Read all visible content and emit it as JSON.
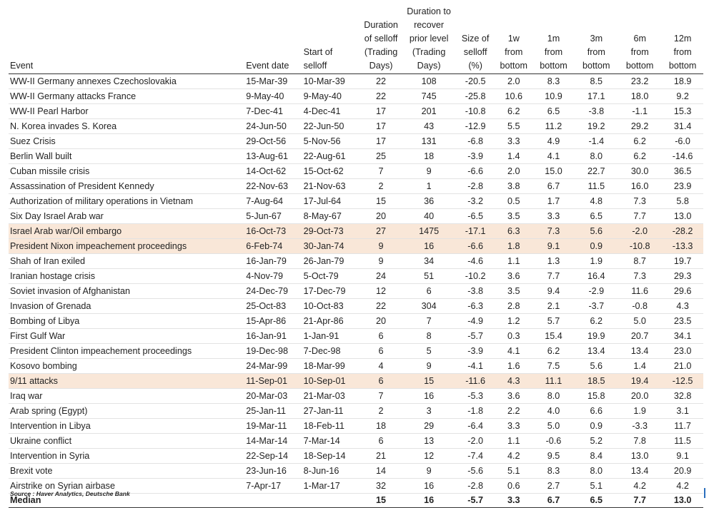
{
  "chart_data": {
    "type": "table",
    "columns": [
      {
        "key": "event",
        "lines": [
          "Event"
        ]
      },
      {
        "key": "event_date",
        "lines": [
          "Event date"
        ]
      },
      {
        "key": "start_selloff",
        "lines": [
          "Start of",
          "selloff"
        ]
      },
      {
        "key": "duration_selloff",
        "lines": [
          "Duration",
          "of selloff",
          "(Trading",
          "Days)"
        ]
      },
      {
        "key": "duration_recover",
        "lines": [
          "Duration to",
          "recover",
          "prior level",
          "(Trading",
          "Days)"
        ]
      },
      {
        "key": "size_selloff",
        "lines": [
          "Size of",
          "selloff",
          "(%)"
        ]
      },
      {
        "key": "w1",
        "lines": [
          "1w",
          "from",
          "bottom"
        ]
      },
      {
        "key": "m1",
        "lines": [
          "1m",
          "from",
          "bottom"
        ]
      },
      {
        "key": "m3",
        "lines": [
          "3m",
          "from",
          "bottom"
        ]
      },
      {
        "key": "m6",
        "lines": [
          "6m",
          "from",
          "bottom"
        ]
      },
      {
        "key": "m12",
        "lines": [
          "12m",
          "from",
          "bottom"
        ]
      }
    ],
    "rows": [
      {
        "cells": [
          "WW-II Germany annexes Czechoslovakia",
          "15-Mar-39",
          "10-Mar-39",
          "22",
          "108",
          "-20.5",
          "2.0",
          "8.3",
          "8.5",
          "23.2",
          "18.9"
        ],
        "highlight": false
      },
      {
        "cells": [
          "WW-II Germany attacks France",
          "9-May-40",
          "9-May-40",
          "22",
          "745",
          "-25.8",
          "10.6",
          "10.9",
          "17.1",
          "18.0",
          "9.2"
        ],
        "highlight": false
      },
      {
        "cells": [
          "WW-II Pearl Harbor",
          "7-Dec-41",
          "4-Dec-41",
          "17",
          "201",
          "-10.8",
          "6.2",
          "6.5",
          "-3.8",
          "-1.1",
          "15.3"
        ],
        "highlight": false
      },
      {
        "cells": [
          "N. Korea invades S. Korea",
          "24-Jun-50",
          "22-Jun-50",
          "17",
          "43",
          "-12.9",
          "5.5",
          "11.2",
          "19.2",
          "29.2",
          "31.4"
        ],
        "highlight": false
      },
      {
        "cells": [
          "Suez Crisis",
          "29-Oct-56",
          "5-Nov-56",
          "17",
          "131",
          "-6.8",
          "3.3",
          "4.9",
          "-1.4",
          "6.2",
          "-6.0"
        ],
        "highlight": false
      },
      {
        "cells": [
          "Berlin Wall built",
          "13-Aug-61",
          "22-Aug-61",
          "25",
          "18",
          "-3.9",
          "1.4",
          "4.1",
          "8.0",
          "6.2",
          "-14.6"
        ],
        "highlight": false
      },
      {
        "cells": [
          "Cuban missile crisis",
          "14-Oct-62",
          "15-Oct-62",
          "7",
          "9",
          "-6.6",
          "2.0",
          "15.0",
          "22.7",
          "30.0",
          "36.5"
        ],
        "highlight": false
      },
      {
        "cells": [
          "Assassination of President Kennedy",
          "22-Nov-63",
          "21-Nov-63",
          "2",
          "1",
          "-2.8",
          "3.8",
          "6.7",
          "11.5",
          "16.0",
          "23.9"
        ],
        "highlight": false
      },
      {
        "cells": [
          "Authorization of military operations in Vietnam",
          "7-Aug-64",
          "17-Jul-64",
          "15",
          "36",
          "-3.2",
          "0.5",
          "1.7",
          "4.8",
          "7.3",
          "5.8"
        ],
        "highlight": false
      },
      {
        "cells": [
          "Six Day Israel Arab war",
          "5-Jun-67",
          "8-May-67",
          "20",
          "40",
          "-6.5",
          "3.5",
          "3.3",
          "6.5",
          "7.7",
          "13.0"
        ],
        "highlight": false
      },
      {
        "cells": [
          "Israel Arab war/Oil embargo",
          "16-Oct-73",
          "29-Oct-73",
          "27",
          "1475",
          "-17.1",
          "6.3",
          "7.3",
          "5.6",
          "-2.0",
          "-28.2"
        ],
        "highlight": true
      },
      {
        "cells": [
          "President Nixon impeachement proceedings",
          "6-Feb-74",
          "30-Jan-74",
          "9",
          "16",
          "-6.6",
          "1.8",
          "9.1",
          "0.9",
          "-10.8",
          "-13.3"
        ],
        "highlight": true
      },
      {
        "cells": [
          "Shah of Iran exiled",
          "16-Jan-79",
          "26-Jan-79",
          "9",
          "34",
          "-4.6",
          "1.1",
          "1.3",
          "1.9",
          "8.7",
          "19.7"
        ],
        "highlight": false
      },
      {
        "cells": [
          "Iranian hostage crisis",
          "4-Nov-79",
          "5-Oct-79",
          "24",
          "51",
          "-10.2",
          "3.6",
          "7.7",
          "16.4",
          "7.3",
          "29.3"
        ],
        "highlight": false
      },
      {
        "cells": [
          "Soviet invasion of Afghanistan",
          "24-Dec-79",
          "17-Dec-79",
          "12",
          "6",
          "-3.8",
          "3.5",
          "9.4",
          "-2.9",
          "11.6",
          "29.6"
        ],
        "highlight": false
      },
      {
        "cells": [
          "Invasion of Grenada",
          "25-Oct-83",
          "10-Oct-83",
          "22",
          "304",
          "-6.3",
          "2.8",
          "2.1",
          "-3.7",
          "-0.8",
          "4.3"
        ],
        "highlight": false
      },
      {
        "cells": [
          "Bombing of Libya",
          "15-Apr-86",
          "21-Apr-86",
          "20",
          "7",
          "-4.9",
          "1.2",
          "5.7",
          "6.2",
          "5.0",
          "23.5"
        ],
        "highlight": false
      },
      {
        "cells": [
          "First Gulf War",
          "16-Jan-91",
          "1-Jan-91",
          "6",
          "8",
          "-5.7",
          "0.3",
          "15.4",
          "19.9",
          "20.7",
          "34.1"
        ],
        "highlight": false
      },
      {
        "cells": [
          "President Clinton impeachement proceedings",
          "19-Dec-98",
          "7-Dec-98",
          "6",
          "5",
          "-3.9",
          "4.1",
          "6.2",
          "13.4",
          "13.4",
          "23.0"
        ],
        "highlight": false
      },
      {
        "cells": [
          "Kosovo bombing",
          "24-Mar-99",
          "18-Mar-99",
          "4",
          "9",
          "-4.1",
          "1.6",
          "7.5",
          "5.6",
          "1.4",
          "21.0"
        ],
        "highlight": false
      },
      {
        "cells": [
          "9/11 attacks",
          "11-Sep-01",
          "10-Sep-01",
          "6",
          "15",
          "-11.6",
          "4.3",
          "11.1",
          "18.5",
          "19.4",
          "-12.5"
        ],
        "highlight": true
      },
      {
        "cells": [
          "Iraq war",
          "20-Mar-03",
          "21-Mar-03",
          "7",
          "16",
          "-5.3",
          "3.6",
          "8.0",
          "15.8",
          "20.0",
          "32.8"
        ],
        "highlight": false
      },
      {
        "cells": [
          "Arab spring (Egypt)",
          "25-Jan-11",
          "27-Jan-11",
          "2",
          "3",
          "-1.8",
          "2.2",
          "4.0",
          "6.6",
          "1.9",
          "3.1"
        ],
        "highlight": false
      },
      {
        "cells": [
          "Intervention in Libya",
          "19-Mar-11",
          "18-Feb-11",
          "18",
          "29",
          "-6.4",
          "3.3",
          "5.0",
          "0.9",
          "-3.3",
          "11.7"
        ],
        "highlight": false
      },
      {
        "cells": [
          "Ukraine conflict",
          "14-Mar-14",
          "7-Mar-14",
          "6",
          "13",
          "-2.0",
          "1.1",
          "-0.6",
          "5.2",
          "7.8",
          "11.5"
        ],
        "highlight": false
      },
      {
        "cells": [
          "Intervention in Syria",
          "22-Sep-14",
          "18-Sep-14",
          "21",
          "12",
          "-7.4",
          "4.2",
          "9.5",
          "8.4",
          "13.0",
          "9.1"
        ],
        "highlight": false
      },
      {
        "cells": [
          "Brexit vote",
          "23-Jun-16",
          "8-Jun-16",
          "14",
          "9",
          "-5.6",
          "5.1",
          "8.3",
          "8.0",
          "13.4",
          "20.9"
        ],
        "highlight": false
      },
      {
        "cells": [
          "Airstrike on Syrian airbase",
          "7-Apr-17",
          "1-Mar-17",
          "32",
          "16",
          "-2.8",
          "0.6",
          "2.7",
          "5.1",
          "4.2",
          "4.2"
        ],
        "highlight": false
      }
    ],
    "median": [
      "Median",
      "",
      "",
      "15",
      "16",
      "-5.7",
      "3.3",
      "6.7",
      "6.5",
      "7.7",
      "13.0"
    ],
    "highlight_color": "#f9e7d8",
    "source": "Source : Haver Analytics, Deutsche Bank"
  }
}
